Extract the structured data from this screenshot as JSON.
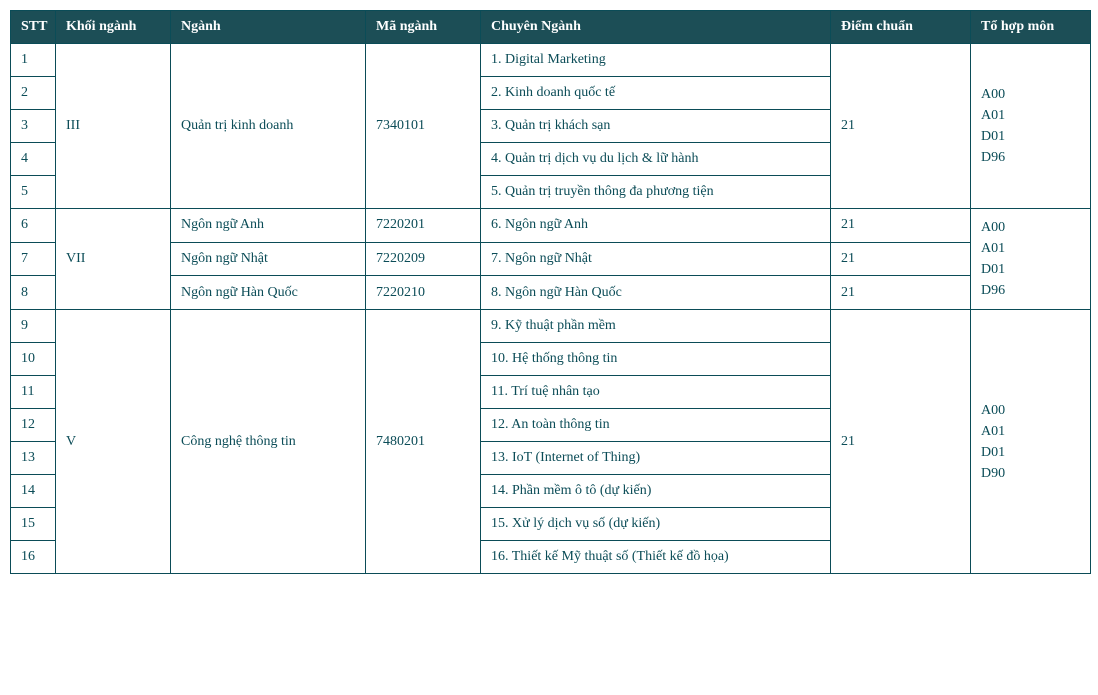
{
  "colors": {
    "header_bg": "#1c4e56",
    "header_text": "#ffffff",
    "border": "#0b4c57",
    "body_text": "#0b4c57",
    "page_bg": "#ffffff"
  },
  "columns": [
    {
      "key": "stt",
      "label": "STT"
    },
    {
      "key": "khoi",
      "label": "Khối ngành"
    },
    {
      "key": "nganh",
      "label": "Ngành"
    },
    {
      "key": "ma",
      "label": "Mã ngành"
    },
    {
      "key": "cn",
      "label": "Chuyên Ngành"
    },
    {
      "key": "diem",
      "label": "Điểm chuẩn"
    },
    {
      "key": "tohop",
      "label": "Tổ hợp môn"
    }
  ],
  "groups": [
    {
      "khoi": "III",
      "tohop": "A00\nA01\nD01\nD96",
      "majors": [
        {
          "nganh": "Quản trị kinh doanh",
          "ma": "7340101",
          "diem": "21",
          "specializations": [
            {
              "stt": "1",
              "cn": "1. Digital Marketing"
            },
            {
              "stt": "2",
              "cn": "2. Kinh doanh quốc tế"
            },
            {
              "stt": "3",
              "cn": "3. Quản trị khách sạn"
            },
            {
              "stt": "4",
              "cn": "4. Quản trị dịch vụ du lịch & lữ hành"
            },
            {
              "stt": "5",
              "cn": "5. Quản trị truyền thông đa phương tiện"
            }
          ]
        }
      ]
    },
    {
      "khoi": "VII",
      "tohop": "A00\nA01\nD01\nD96",
      "majors": [
        {
          "nganh": "Ngôn ngữ Anh",
          "ma": "7220201",
          "diem": "21",
          "specializations": [
            {
              "stt": "6",
              "cn": "6. Ngôn ngữ Anh"
            }
          ]
        },
        {
          "nganh": "Ngôn ngữ Nhật",
          "ma": "7220209",
          "diem": "21",
          "specializations": [
            {
              "stt": "7",
              "cn": "7. Ngôn ngữ Nhật"
            }
          ]
        },
        {
          "nganh": "Ngôn ngữ Hàn Quốc",
          "ma": "7220210",
          "diem": "21",
          "specializations": [
            {
              "stt": "8",
              "cn": "8. Ngôn ngữ Hàn Quốc"
            }
          ]
        }
      ]
    },
    {
      "khoi": "V",
      "tohop": "A00\nA01\nD01\nD90",
      "majors": [
        {
          "nganh": "Công nghệ thông tin",
          "ma": "7480201",
          "diem": "21",
          "specializations": [
            {
              "stt": "9",
              "cn": "9. Kỹ thuật phần mềm"
            },
            {
              "stt": "10",
              "cn": "10. Hệ thống thông tin"
            },
            {
              "stt": "11",
              "cn": "11. Trí tuệ nhân tạo"
            },
            {
              "stt": "12",
              "cn": "12. An toàn thông tin"
            },
            {
              "stt": "13",
              "cn": "13. IoT (Internet of Thing)"
            },
            {
              "stt": "14",
              "cn": "14. Phần mềm ô tô (dự kiến)"
            },
            {
              "stt": "15",
              "cn": "15. Xử lý dịch vụ số (dự kiến)"
            },
            {
              "stt": "16",
              "cn": "16. Thiết kế Mỹ thuật số (Thiết kế đồ họa)"
            }
          ]
        }
      ]
    }
  ]
}
